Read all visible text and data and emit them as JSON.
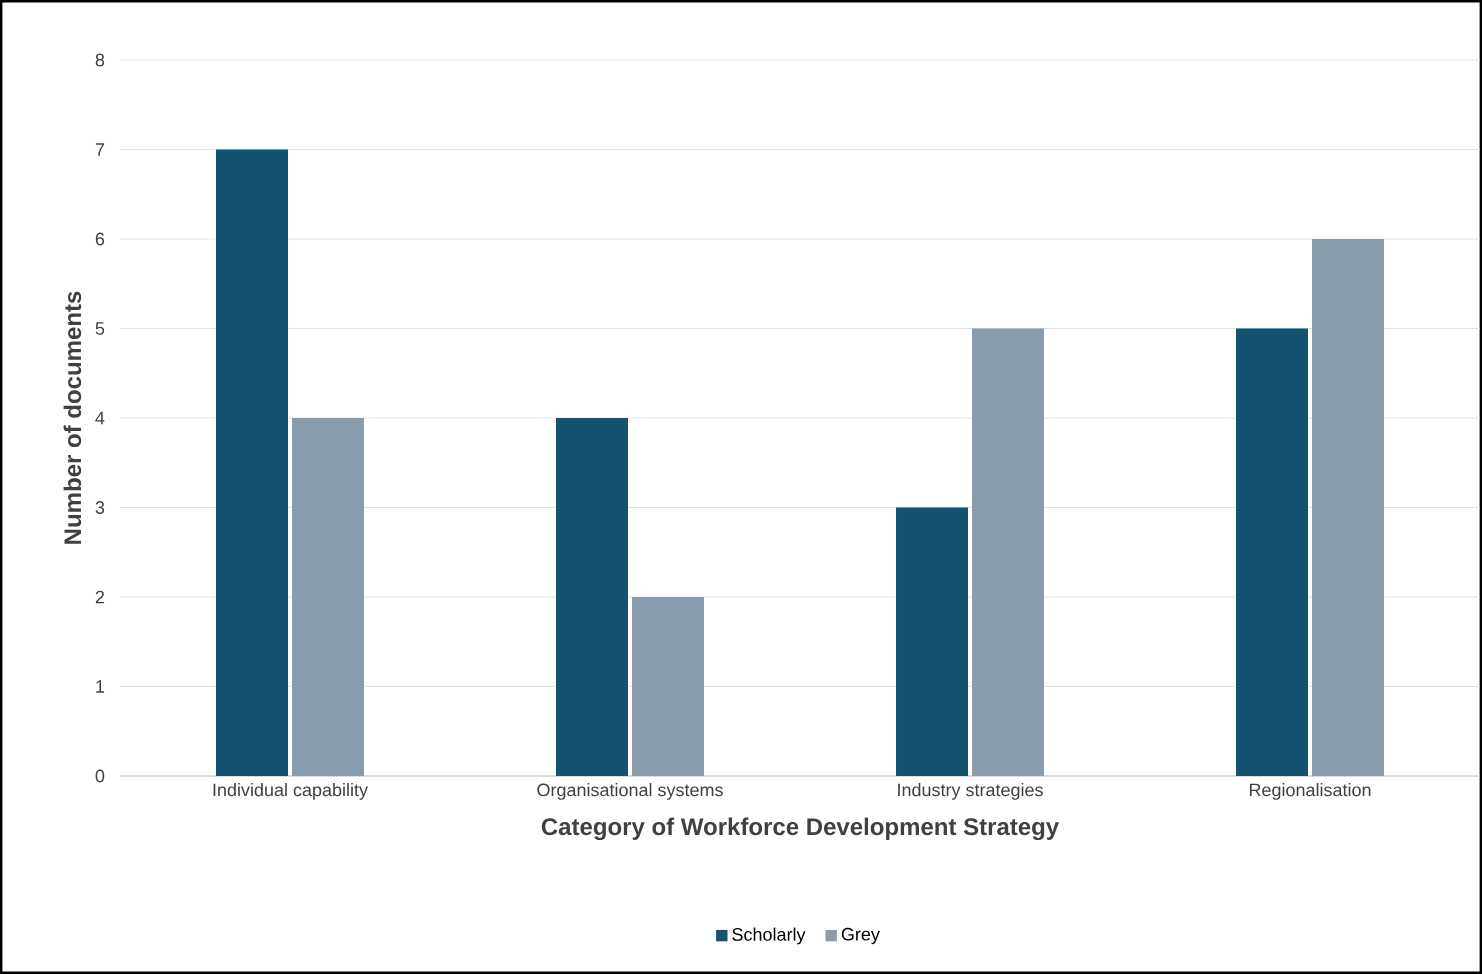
{
  "chart_data": {
    "type": "bar",
    "xlabel": "Category of Workforce Development Strategy",
    "ylabel": "Number of documents",
    "categories": [
      "Individual capability",
      "Organisational systems",
      "Industry strategies",
      "Regionalisation"
    ],
    "series": [
      {
        "name": "Scholarly",
        "color": "#145370",
        "values": [
          7,
          4,
          3,
          5
        ]
      },
      {
        "name": "Grey",
        "color": "#8a9bab",
        "values": [
          4,
          2,
          5,
          6
        ]
      }
    ],
    "ylim": [
      0,
      8
    ],
    "yticks": [
      0,
      1,
      2,
      3,
      4,
      5,
      6,
      7,
      8
    ],
    "grid": "y",
    "legend": "bottom"
  }
}
